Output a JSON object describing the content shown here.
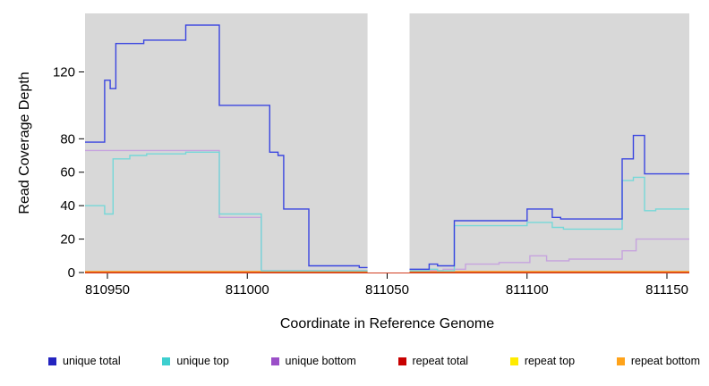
{
  "chart_data": {
    "type": "line",
    "title": "",
    "xlabel": "Coordinate in Reference Genome",
    "ylabel": "Read Coverage Depth",
    "xlim": [
      810942,
      811158
    ],
    "ylim": [
      0,
      155
    ],
    "xticks": [
      810950,
      811000,
      811050,
      811100,
      811150
    ],
    "yticks": [
      0,
      20,
      40,
      60,
      80,
      120
    ],
    "grid": false,
    "legend_position": "bottom",
    "plot_bg": "#d8d8d8",
    "gap_region": [
      811043,
      811058
    ],
    "series": [
      {
        "name": "repeat top",
        "color": "#ffeb00",
        "points": [
          [
            810942,
            0
          ]
        ]
      },
      {
        "name": "repeat total",
        "color": "#c00000",
        "points": [
          [
            810942,
            0
          ]
        ]
      },
      {
        "name": "repeat bottom",
        "color": "#ff9d1c",
        "points": [
          [
            810942,
            0.6
          ]
        ]
      },
      {
        "name": "unique bottom",
        "color": "#c6a3de",
        "points": [
          [
            810942,
            73
          ],
          [
            810990,
            33
          ],
          [
            811005,
            1.2
          ],
          [
            811070,
            2
          ],
          [
            811078,
            5
          ],
          [
            811090,
            6
          ],
          [
            811101,
            10
          ],
          [
            811107,
            7
          ],
          [
            811115,
            8
          ],
          [
            811134,
            13
          ],
          [
            811139,
            20
          ]
        ]
      },
      {
        "name": "unique top",
        "color": "#76d8d8",
        "points": [
          [
            810942,
            40
          ],
          [
            810949,
            35
          ],
          [
            810952,
            68
          ],
          [
            810958,
            70
          ],
          [
            810964,
            71
          ],
          [
            810978,
            72
          ],
          [
            810990,
            35
          ],
          [
            811005,
            1
          ],
          [
            811065,
            2
          ],
          [
            811068,
            1
          ],
          [
            811074,
            28
          ],
          [
            811100,
            30
          ],
          [
            811109,
            27
          ],
          [
            811113,
            26
          ],
          [
            811134,
            55
          ],
          [
            811138,
            57
          ],
          [
            811142,
            37
          ],
          [
            811146,
            38
          ]
        ]
      },
      {
        "name": "unique total",
        "color": "#3a45e0",
        "points": [
          [
            810942,
            78
          ],
          [
            810949,
            115
          ],
          [
            810951,
            110
          ],
          [
            810953,
            137
          ],
          [
            810963,
            139
          ],
          [
            810978,
            148
          ],
          [
            810990,
            100
          ],
          [
            811008,
            72
          ],
          [
            811011,
            70
          ],
          [
            811013,
            38
          ],
          [
            811022,
            4
          ],
          [
            811040,
            3
          ],
          [
            811045,
            2
          ],
          [
            811065,
            5
          ],
          [
            811068,
            4
          ],
          [
            811074,
            31
          ],
          [
            811100,
            38
          ],
          [
            811109,
            33
          ],
          [
            811112,
            32
          ],
          [
            811134,
            68
          ],
          [
            811138,
            82
          ],
          [
            811142,
            59
          ]
        ]
      }
    ]
  },
  "legend": {
    "items": [
      {
        "label": "unique total",
        "color": "#2424c0"
      },
      {
        "label": "unique top",
        "color": "#3ecfcf"
      },
      {
        "label": "unique bottom",
        "color": "#9b4fc8"
      },
      {
        "label": "repeat total",
        "color": "#c80000"
      },
      {
        "label": "repeat top",
        "color": "#ffeb00"
      },
      {
        "label": "repeat bottom",
        "color": "#ffa31a"
      }
    ]
  }
}
